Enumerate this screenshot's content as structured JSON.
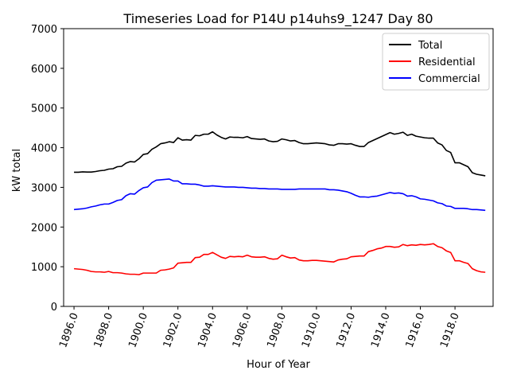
{
  "chart_data": {
    "type": "line",
    "title": "Timeseries Load for P14U p14uhs9_1247  Day 80",
    "xlabel": "Hour of Year",
    "ylabel": "kW total",
    "xlim": [
      1895.4,
      1920.2
    ],
    "ylim": [
      0,
      7000
    ],
    "xticks": [
      1896,
      1898,
      1900,
      1902,
      1904,
      1906,
      1908,
      1910,
      1912,
      1914,
      1916,
      1918
    ],
    "xtick_labels": [
      "1896.0",
      "1898.0",
      "1900.0",
      "1902.0",
      "1904.0",
      "1906.0",
      "1908.0",
      "1910.0",
      "1912.0",
      "1914.0",
      "1916.0",
      "1918.0"
    ],
    "yticks": [
      0,
      1000,
      2000,
      3000,
      4000,
      5000,
      6000,
      7000
    ],
    "ytick_labels": [
      "0",
      "1000",
      "2000",
      "3000",
      "4000",
      "5000",
      "6000",
      "7000"
    ],
    "legend_position": "top-right",
    "x": [
      1896.0,
      1896.25,
      1896.5,
      1896.75,
      1897.0,
      1897.25,
      1897.5,
      1897.75,
      1898.0,
      1898.25,
      1898.5,
      1898.75,
      1899.0,
      1899.25,
      1899.5,
      1899.75,
      1900.0,
      1900.25,
      1900.5,
      1900.75,
      1901.0,
      1901.25,
      1901.5,
      1901.75,
      1902.0,
      1902.25,
      1902.5,
      1902.75,
      1903.0,
      1903.25,
      1903.5,
      1903.75,
      1904.0,
      1904.25,
      1904.5,
      1904.75,
      1905.0,
      1905.25,
      1905.5,
      1905.75,
      1906.0,
      1906.25,
      1906.5,
      1906.75,
      1907.0,
      1907.25,
      1907.5,
      1907.75,
      1908.0,
      1908.25,
      1908.5,
      1908.75,
      1909.0,
      1909.25,
      1909.5,
      1909.75,
      1910.0,
      1910.25,
      1910.5,
      1910.75,
      1911.0,
      1911.25,
      1911.5,
      1911.75,
      1912.0,
      1912.25,
      1912.5,
      1912.75,
      1913.0,
      1913.25,
      1913.5,
      1913.75,
      1914.0,
      1914.25,
      1914.5,
      1914.75,
      1915.0,
      1915.25,
      1915.5,
      1915.75,
      1916.0,
      1916.25,
      1916.5,
      1916.75,
      1917.0,
      1917.25,
      1917.5,
      1917.75,
      1918.0,
      1918.25,
      1918.5,
      1918.75,
      1919.0,
      1919.25,
      1919.5,
      1919.75
    ],
    "series": [
      {
        "name": "Total",
        "color": "#000000",
        "values": [
          3380,
          3380,
          3390,
          3385,
          3385,
          3400,
          3420,
          3430,
          3460,
          3470,
          3520,
          3530,
          3610,
          3650,
          3640,
          3720,
          3830,
          3850,
          3960,
          4020,
          4100,
          4120,
          4150,
          4130,
          4250,
          4190,
          4200,
          4190,
          4310,
          4300,
          4340,
          4340,
          4400,
          4320,
          4260,
          4220,
          4270,
          4260,
          4260,
          4250,
          4280,
          4230,
          4220,
          4210,
          4220,
          4170,
          4150,
          4160,
          4220,
          4200,
          4170,
          4180,
          4130,
          4100,
          4100,
          4110,
          4120,
          4110,
          4100,
          4070,
          4060,
          4100,
          4100,
          4090,
          4100,
          4060,
          4030,
          4030,
          4130,
          4180,
          4230,
          4280,
          4330,
          4380,
          4340,
          4360,
          4390,
          4310,
          4340,
          4290,
          4270,
          4250,
          4240,
          4240,
          4120,
          4070,
          3930,
          3880,
          3620,
          3620,
          3570,
          3520,
          3370,
          3330,
          3310,
          3290
        ]
      },
      {
        "name": "Residential",
        "color": "#ff0000",
        "values": [
          950,
          940,
          930,
          910,
          880,
          870,
          870,
          860,
          880,
          850,
          850,
          840,
          820,
          810,
          810,
          800,
          840,
          840,
          840,
          840,
          910,
          920,
          940,
          970,
          1090,
          1100,
          1110,
          1110,
          1230,
          1240,
          1310,
          1310,
          1360,
          1300,
          1240,
          1210,
          1260,
          1250,
          1260,
          1250,
          1290,
          1250,
          1240,
          1240,
          1250,
          1210,
          1190,
          1200,
          1290,
          1250,
          1220,
          1230,
          1170,
          1150,
          1150,
          1160,
          1160,
          1150,
          1140,
          1130,
          1120,
          1170,
          1190,
          1200,
          1250,
          1260,
          1270,
          1270,
          1380,
          1410,
          1450,
          1470,
          1510,
          1510,
          1490,
          1500,
          1560,
          1530,
          1550,
          1540,
          1560,
          1550,
          1560,
          1580,
          1510,
          1480,
          1400,
          1360,
          1150,
          1150,
          1110,
          1080,
          950,
          900,
          870,
          860
        ]
      },
      {
        "name": "Commercial",
        "color": "#0000ff",
        "values": [
          2440,
          2450,
          2460,
          2480,
          2510,
          2530,
          2560,
          2580,
          2580,
          2620,
          2670,
          2690,
          2790,
          2840,
          2830,
          2920,
          2990,
          3010,
          3120,
          3180,
          3190,
          3200,
          3210,
          3160,
          3160,
          3090,
          3090,
          3080,
          3080,
          3060,
          3030,
          3030,
          3040,
          3030,
          3020,
          3010,
          3010,
          3010,
          3000,
          3000,
          2990,
          2980,
          2980,
          2970,
          2970,
          2960,
          2960,
          2960,
          2950,
          2950,
          2950,
          2950,
          2960,
          2960,
          2960,
          2960,
          2960,
          2960,
          2960,
          2940,
          2940,
          2930,
          2910,
          2890,
          2850,
          2800,
          2760,
          2760,
          2750,
          2770,
          2780,
          2810,
          2840,
          2870,
          2850,
          2860,
          2840,
          2780,
          2790,
          2760,
          2710,
          2700,
          2680,
          2660,
          2610,
          2590,
          2530,
          2520,
          2470,
          2470,
          2470,
          2460,
          2440,
          2440,
          2430,
          2420
        ]
      }
    ]
  }
}
